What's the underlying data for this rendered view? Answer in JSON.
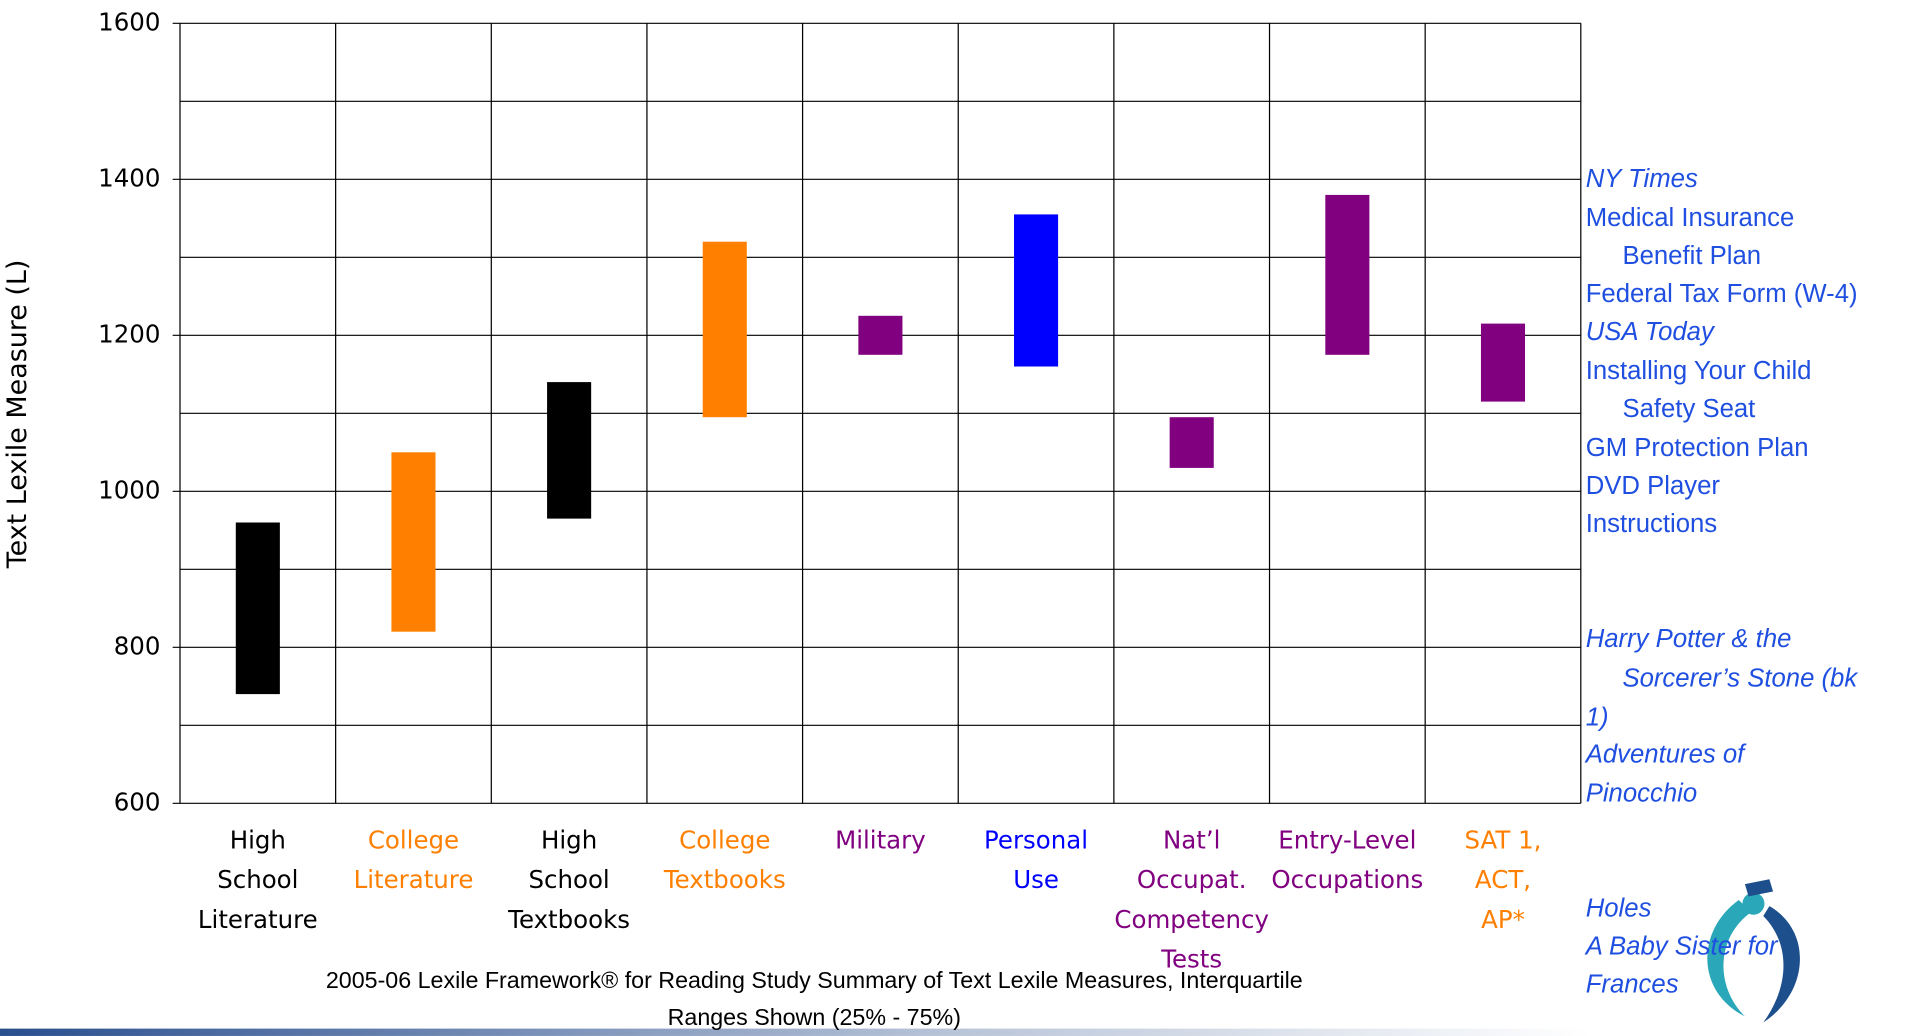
{
  "chart_data": {
    "type": "floating_bar",
    "y_label": "Text Lexile Measure (L)",
    "caption": [
      "2005-06 Lexile  Framework® for Reading Study Summary of Text Lexile Measures, Interquartile",
      "Ranges Shown (25% - 75%)"
    ],
    "categories": [
      [
        "High",
        "School",
        "Literature"
      ],
      [
        "College",
        "Literature"
      ],
      [
        "High",
        "School",
        "Textbooks"
      ],
      [
        "College",
        "Textbooks"
      ],
      [
        "Military"
      ],
      [
        "Personal",
        "Use"
      ],
      [
        "Nat’l",
        "Occupat.",
        "Competency",
        "Tests"
      ],
      [
        "Entry-Level",
        "Occupations"
      ],
      [
        "SAT 1,",
        "ACT,",
        "AP*"
      ]
    ],
    "low": [
      740,
      820,
      965,
      1095,
      1175,
      1160,
      1030,
      1175,
      1115
    ],
    "high": [
      960,
      1050,
      1140,
      1320,
      1225,
      1355,
      1095,
      1380,
      1215
    ],
    "colors": [
      "#000000",
      "#ff8000",
      "#000000",
      "#ff8000",
      "#800080",
      "#0000ff",
      "#800080",
      "#800080",
      "#800080"
    ],
    "label_colors": [
      "#000000",
      "#ff8000",
      "#000000",
      "#ff8000",
      "#800080",
      "#0000ff",
      "#800080",
      "#800080",
      "#ff8000"
    ],
    "ylim": [
      600,
      1600
    ],
    "yticks": [
      600,
      800,
      1000,
      1200,
      1400,
      1600
    ],
    "minor_yticks": [
      700,
      900,
      1100,
      1300,
      1500
    ],
    "grid": true,
    "notes_color": "#1f4fe0",
    "notes": [
      {
        "text": "NY Times",
        "italic": true
      },
      {
        "text": "Medical Insurance",
        "italic": false
      },
      {
        "text": "Benefit Plan",
        "italic": false
      },
      {
        "text": "Federal Tax Form (W-4)",
        "italic": false
      },
      {
        "text": "USA Today",
        "italic": true
      },
      {
        "text": "Installing Your Child",
        "italic": false
      },
      {
        "text": "Safety Seat",
        "italic": false
      },
      {
        "text": "GM Protection Plan",
        "italic": false
      },
      {
        "text": "DVD Player",
        "italic": false
      },
      {
        "text": "Instructions",
        "italic": false
      },
      {
        "text": "Harry Potter & the",
        "italic": true
      },
      {
        "text": "Sorcerer’s Stone (bk",
        "italic": true
      },
      {
        "text": "1)",
        "italic": true
      },
      {
        "text": "Adventures of",
        "italic": true
      },
      {
        "text": "Pinocchio",
        "italic": true
      },
      {
        "text": "Holes",
        "italic": true
      },
      {
        "text": "A Baby Sister for",
        "italic": true
      },
      {
        "text": "Frances",
        "italic": true
      }
    ]
  }
}
